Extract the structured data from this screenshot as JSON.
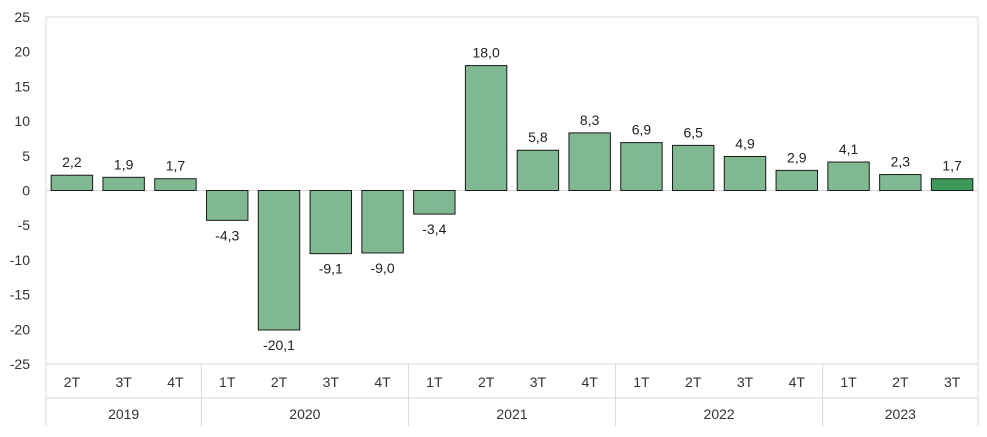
{
  "chart_data": {
    "type": "bar",
    "title": "",
    "xlabel": "",
    "ylabel": "",
    "ylim": [
      -25,
      25
    ],
    "yticks": [
      25,
      20,
      15,
      10,
      5,
      0,
      -5,
      -10,
      -15,
      -20,
      -25
    ],
    "ytick_labels": [
      "25",
      "20",
      "15",
      "10",
      "5",
      "0",
      "-5",
      "-10",
      "-15",
      "-20",
      "-25"
    ],
    "grid": false,
    "legend": "none",
    "bar_color": "#7fb891",
    "last_bar_color": "#3e9a5c",
    "bar_edge_color": "#1a1a1a",
    "categories": [
      "2T",
      "3T",
      "4T",
      "1T",
      "2T",
      "3T",
      "4T",
      "1T",
      "2T",
      "3T",
      "4T",
      "1T",
      "2T",
      "3T",
      "4T",
      "1T",
      "2T",
      "3T"
    ],
    "values": [
      2.2,
      1.9,
      1.7,
      -4.3,
      -20.1,
      -9.1,
      -9.0,
      -3.4,
      18.0,
      5.8,
      8.3,
      6.9,
      6.5,
      4.9,
      2.9,
      4.1,
      2.3,
      1.7
    ],
    "value_labels": [
      "2,2",
      "1,9",
      "1,7",
      "-4,3",
      "-20,1",
      "-9,1",
      "-9,0",
      "-3,4",
      "18,0",
      "5,8",
      "8,3",
      "6,9",
      "6,5",
      "4,9",
      "2,9",
      "4,1",
      "2,3",
      "1,7"
    ],
    "groups": [
      {
        "label": "2019",
        "count": 3
      },
      {
        "label": "2020",
        "count": 4
      },
      {
        "label": "2021",
        "count": 4
      },
      {
        "label": "2022",
        "count": 4
      },
      {
        "label": "2023",
        "count": 3
      }
    ]
  }
}
